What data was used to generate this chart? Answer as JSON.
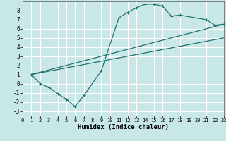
{
  "xlabel": "Humidex (Indice chaleur)",
  "background_color": "#c8e8e8",
  "grid_color": "#ffffff",
  "line_color": "#1a6b6b",
  "xlim": [
    0,
    23
  ],
  "ylim": [
    -3.5,
    9.0
  ],
  "xticks": [
    0,
    1,
    2,
    3,
    4,
    5,
    6,
    7,
    8,
    9,
    10,
    11,
    12,
    13,
    14,
    15,
    16,
    17,
    18,
    19,
    20,
    21,
    22,
    23
  ],
  "yticks": [
    -3,
    -2,
    -1,
    0,
    1,
    2,
    3,
    4,
    5,
    6,
    7,
    8
  ],
  "curve_x": [
    1,
    2,
    3,
    4,
    5,
    6,
    7,
    9,
    11,
    12,
    13,
    14,
    15,
    16,
    17,
    18,
    21,
    22,
    23
  ],
  "curve_y": [
    1.0,
    0.0,
    -0.4,
    -1.1,
    -1.7,
    -2.5,
    -1.3,
    1.4,
    7.2,
    7.8,
    8.3,
    8.7,
    8.7,
    8.5,
    7.4,
    7.5,
    7.0,
    6.4,
    6.5
  ],
  "diag1_x": [
    1,
    2,
    3,
    4,
    5,
    6,
    7,
    8,
    9,
    10,
    11,
    12,
    13,
    14,
    15,
    16,
    17,
    18,
    19,
    20,
    21,
    22,
    23
  ],
  "diag1_y": [
    1.0,
    1.18,
    1.36,
    1.54,
    1.73,
    1.91,
    2.09,
    2.27,
    2.45,
    2.64,
    2.82,
    3.0,
    3.18,
    3.36,
    3.55,
    3.73,
    3.91,
    4.09,
    4.27,
    4.45,
    4.64,
    4.82,
    5.0
  ],
  "diag2_x": [
    1,
    2,
    3,
    4,
    5,
    6,
    7,
    8,
    9,
    10,
    11,
    12,
    13,
    14,
    15,
    16,
    17,
    18,
    19,
    20,
    21,
    22,
    23
  ],
  "diag2_y": [
    1.0,
    1.25,
    1.5,
    1.75,
    2.0,
    2.25,
    2.5,
    2.75,
    3.0,
    3.25,
    3.5,
    3.75,
    4.0,
    4.25,
    4.5,
    4.75,
    5.0,
    5.25,
    5.5,
    5.75,
    6.0,
    6.25,
    6.5
  ]
}
